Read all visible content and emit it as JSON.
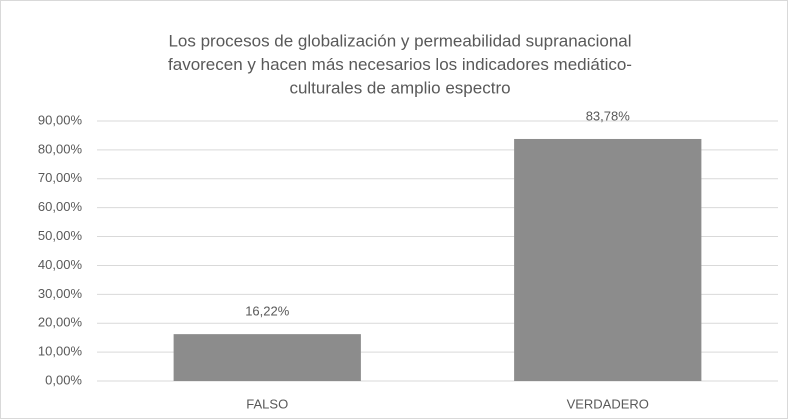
{
  "chart_data": {
    "type": "bar",
    "title": [
      "Los procesos de globalización y permeabilidad supranacional",
      "favorecen y hacen más necesarios los indicadores mediático-",
      "culturales de amplio espectro"
    ],
    "categories": [
      "FALSO",
      "VERDADERO"
    ],
    "values": [
      16.22,
      83.78
    ],
    "value_labels": [
      "16,22%",
      "83,78%"
    ],
    "color": "#8c8c8c",
    "ylim": [
      0,
      90
    ],
    "yticks": [
      {
        "value": 0,
        "label": "0,00%"
      },
      {
        "value": 10,
        "label": "10,00%"
      },
      {
        "value": 20,
        "label": "20,00%"
      },
      {
        "value": 30,
        "label": "30,00%"
      },
      {
        "value": 40,
        "label": "40,00%"
      },
      {
        "value": 50,
        "label": "50,00%"
      },
      {
        "value": 60,
        "label": "60,00%"
      },
      {
        "value": 70,
        "label": "70,00%"
      },
      {
        "value": 80,
        "label": "80,00%"
      },
      {
        "value": 90,
        "label": "90,00%"
      }
    ],
    "grid": true
  }
}
